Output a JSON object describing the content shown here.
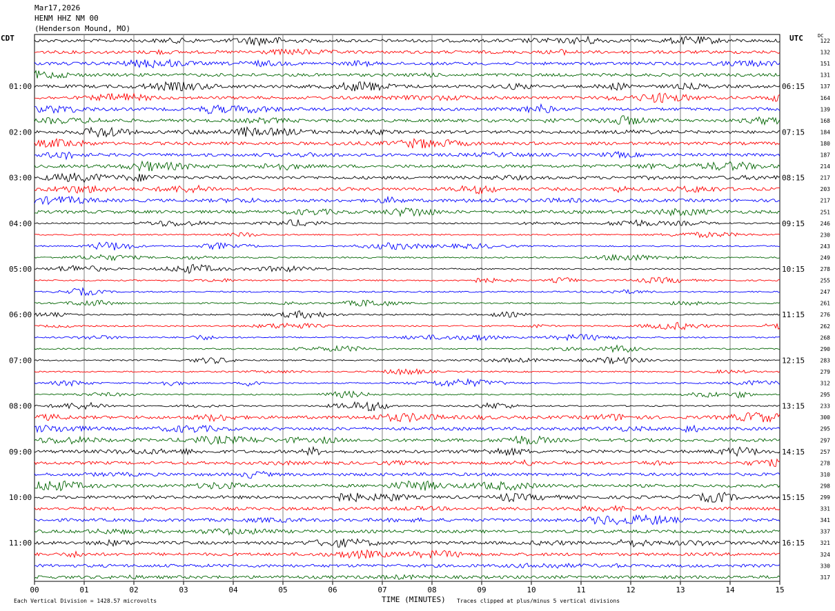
{
  "header": {
    "date": "Mar17,2026",
    "station": "HENM HHZ NM 00",
    "location": "(Henderson Mound, MO)"
  },
  "left_timezone": "CDT",
  "right_timezone": "UTC",
  "dc_label": "DC",
  "footer": {
    "scale": "Each Vertical Division = 1428.57 microvolts",
    "xlabel": "TIME (MINUTES)",
    "clip_note": "Traces clipped at plus/minus 5 vertical divisions"
  },
  "colors": {
    "trace_cycle": [
      "#000000",
      "#ff0000",
      "#0000ff",
      "#006400"
    ],
    "grid": "#808080"
  },
  "chart_data": {
    "type": "line",
    "title": "HENM HHZ NM 00",
    "xlabel": "TIME (MINUTES)",
    "xlim": [
      0,
      15
    ],
    "x_ticks": [
      "00",
      "01",
      "02",
      "03",
      "04",
      "05",
      "06",
      "07",
      "08",
      "09",
      "10",
      "11",
      "12",
      "13",
      "14",
      "15"
    ],
    "left_time_labels": [
      "01:00",
      "02:00",
      "03:00",
      "04:00",
      "05:00",
      "06:00",
      "07:00",
      "08:00",
      "09:00",
      "10:00",
      "11:00"
    ],
    "right_time_labels": [
      "06:15",
      "07:15",
      "08:15",
      "09:15",
      "10:15",
      "11:15",
      "12:15",
      "13:15",
      "14:15",
      "15:15",
      "16:15"
    ],
    "dc_offsets": [
      122,
      132,
      151,
      131,
      137,
      164,
      139,
      168,
      184,
      180,
      187,
      214,
      217,
      203,
      217,
      251,
      246,
      230,
      243,
      249,
      278,
      255,
      247,
      261,
      276,
      262,
      268,
      290,
      283,
      279,
      312,
      295,
      233,
      300,
      295,
      297,
      257,
      278,
      310,
      298,
      299,
      331,
      341,
      337,
      321,
      324,
      330,
      317
    ],
    "series_colors_cycle": [
      "black",
      "red",
      "blue",
      "green"
    ],
    "trace_count": 48,
    "trace_duration_minutes": 15
  }
}
